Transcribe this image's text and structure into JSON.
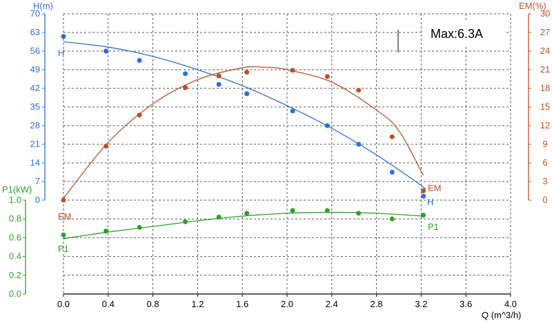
{
  "chart_data": {
    "type": "line",
    "annotation": "Max:6.3A",
    "colors": {
      "H": "#2f6fd6",
      "EM": "#b8522a",
      "P1": "#2ca02c",
      "grid": "#555555",
      "x_axis": "#000000"
    },
    "x_axis": {
      "label": "Q (m^3/h)",
      "range": [
        0,
        4.0
      ],
      "ticks": [
        "0.0",
        "0.4",
        "0.8",
        "1.2",
        "1.6",
        "2.0",
        "2.4",
        "2.8",
        "3.2",
        "3.6",
        "4.0"
      ],
      "tick_values": [
        0,
        0.4,
        0.8,
        1.2,
        1.6,
        2.0,
        2.4,
        2.8,
        3.2,
        3.6,
        4.0
      ]
    },
    "y_axes": {
      "H": {
        "label": "H(m)",
        "side": "left",
        "range": [
          0,
          70
        ],
        "ticks": [
          "70",
          "63",
          "56",
          "49",
          "42",
          "35",
          "28",
          "21",
          "14",
          "7",
          "0"
        ],
        "tick_values": [
          70,
          63,
          56,
          49,
          42,
          35,
          28,
          21,
          14,
          7,
          0
        ]
      },
      "EM": {
        "label": "EM(%)",
        "side": "right",
        "range": [
          0,
          30
        ],
        "ticks": [
          "30",
          "27",
          "24",
          "21",
          "18",
          "15",
          "12",
          "9",
          "6",
          "3",
          "0"
        ],
        "tick_values": [
          30,
          27,
          24,
          21,
          18,
          15,
          12,
          9,
          6,
          3,
          0
        ]
      },
      "P1": {
        "label": "P1(kW)",
        "side": "left",
        "range": [
          0,
          1.0
        ],
        "ticks": [
          "1.0",
          "0.8",
          "0.6",
          "0.4",
          "0.2",
          "0.0"
        ],
        "tick_values": [
          1.0,
          0.8,
          0.6,
          0.4,
          0.2,
          0.0
        ]
      }
    },
    "series": [
      {
        "name": "H",
        "axis": "H",
        "points": [
          [
            0.0,
            61.5
          ],
          [
            0.38,
            56.0
          ],
          [
            0.68,
            52.5
          ],
          [
            1.09,
            47.5
          ],
          [
            1.39,
            43.5
          ],
          [
            1.64,
            40.0
          ],
          [
            2.05,
            33.5
          ],
          [
            2.36,
            28.0
          ],
          [
            2.64,
            21.0
          ],
          [
            2.94,
            10.5
          ],
          [
            3.22,
            1.5
          ]
        ],
        "fit": [
          [
            0.0,
            59.5
          ],
          [
            0.4,
            57.5
          ],
          [
            0.8,
            54.0
          ],
          [
            1.2,
            49.0
          ],
          [
            1.6,
            43.0
          ],
          [
            2.0,
            35.5
          ],
          [
            2.4,
            27.0
          ],
          [
            2.8,
            17.0
          ],
          [
            3.2,
            5.5
          ],
          [
            3.22,
            4.0
          ]
        ],
        "end_label": "H"
      },
      {
        "name": "EM",
        "axis": "EM",
        "points": [
          [
            0.0,
            0.0
          ],
          [
            0.38,
            8.7
          ],
          [
            0.68,
            13.7
          ],
          [
            1.09,
            18.1
          ],
          [
            1.39,
            20.0
          ],
          [
            1.64,
            20.6
          ],
          [
            2.05,
            20.9
          ],
          [
            2.36,
            19.9
          ],
          [
            2.64,
            17.7
          ],
          [
            2.94,
            10.2
          ],
          [
            3.22,
            1.5
          ]
        ],
        "fit": [
          [
            0.0,
            0.3
          ],
          [
            0.4,
            9.3
          ],
          [
            0.8,
            15.5
          ],
          [
            1.2,
            19.4
          ],
          [
            1.6,
            21.3
          ],
          [
            1.8,
            21.4
          ],
          [
            2.0,
            21.0
          ],
          [
            2.4,
            19.0
          ],
          [
            2.8,
            14.5
          ],
          [
            3.0,
            11.2
          ],
          [
            3.22,
            4.0
          ]
        ],
        "end_label": "EM"
      },
      {
        "name": "P1",
        "axis": "P1",
        "points": [
          [
            0.0,
            0.63
          ],
          [
            0.38,
            0.67
          ],
          [
            0.68,
            0.71
          ],
          [
            1.09,
            0.77
          ],
          [
            1.39,
            0.82
          ],
          [
            1.64,
            0.86
          ],
          [
            2.05,
            0.89
          ],
          [
            2.36,
            0.89
          ],
          [
            2.64,
            0.86
          ],
          [
            2.94,
            0.8
          ],
          [
            3.22,
            0.84
          ]
        ],
        "fit": [
          [
            0.0,
            0.59
          ],
          [
            0.4,
            0.66
          ],
          [
            0.8,
            0.72
          ],
          [
            1.2,
            0.78
          ],
          [
            1.6,
            0.83
          ],
          [
            2.0,
            0.86
          ],
          [
            2.4,
            0.87
          ],
          [
            2.8,
            0.86
          ],
          [
            3.22,
            0.83
          ]
        ],
        "end_label": "P1"
      }
    ]
  }
}
